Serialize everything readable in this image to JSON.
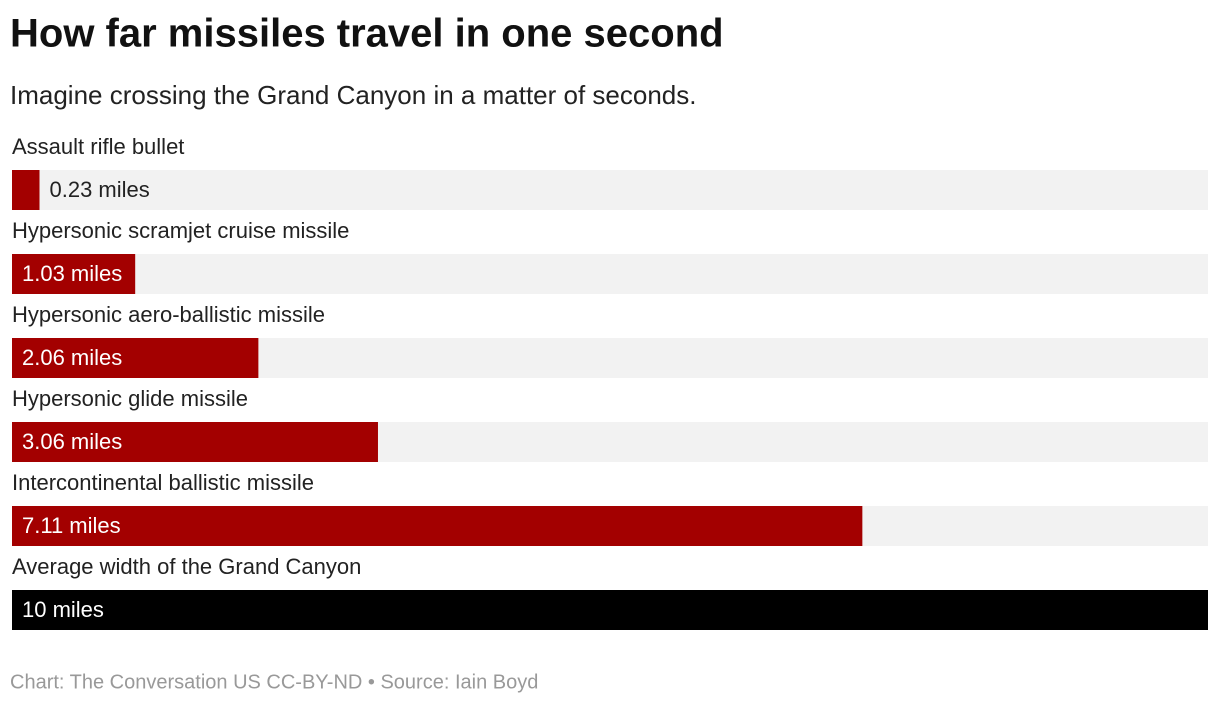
{
  "chart_data": {
    "type": "bar",
    "orientation": "horizontal",
    "title": "How far missiles travel in one second",
    "subtitle": "Imagine crossing the Grand Canyon in a matter of seconds.",
    "categories": [
      "Assault rifle bullet",
      "Hypersonic scramjet cruise missile",
      "Hypersonic aero-ballistic missile",
      "Hypersonic glide missile",
      "Intercontinental ballistic missile",
      "Average width of the Grand Canyon"
    ],
    "values": [
      0.23,
      1.03,
      2.06,
      3.06,
      7.11,
      10
    ],
    "value_labels": [
      "0.23 miles",
      "1.03 miles",
      "2.06 miles",
      "3.06 miles",
      "7.11 miles",
      "10 miles"
    ],
    "colors": [
      "#a30000",
      "#a30000",
      "#a30000",
      "#a30000",
      "#a30000",
      "#000000"
    ],
    "xlim": [
      0,
      10
    ],
    "source": "Chart: The Conversation US CC-BY-ND • Source: Iain Boyd"
  }
}
